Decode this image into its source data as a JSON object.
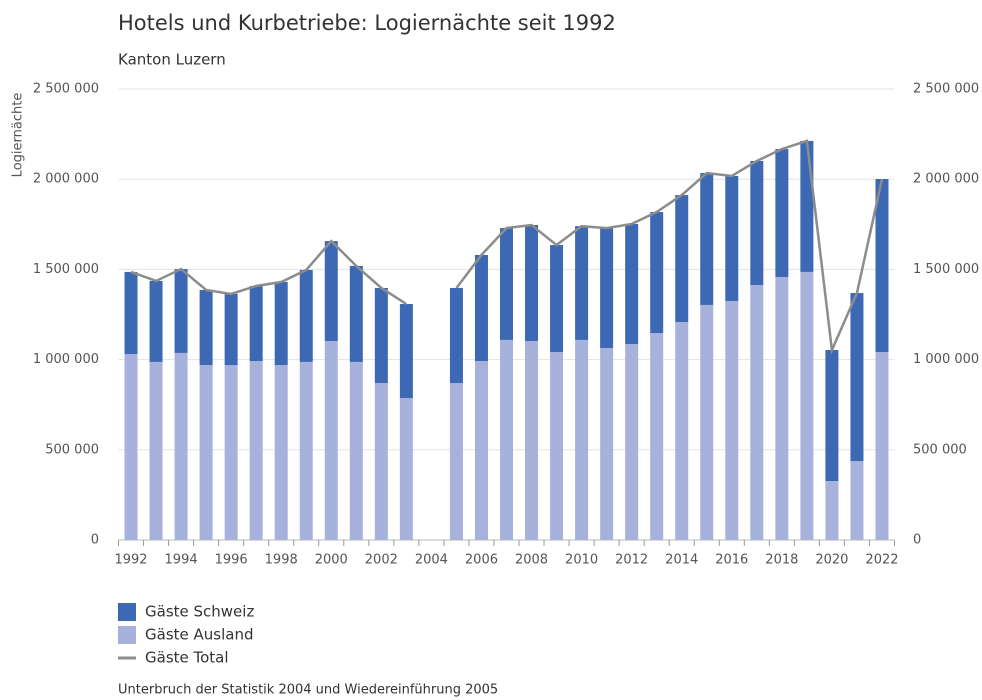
{
  "chart_data": {
    "type": "bar",
    "title": "Hotels und Kurbetriebe: Logiernächte seit 1992",
    "subtitle": "Kanton Luzern",
    "y_label": "Logiernächte",
    "note": "Unterbruch der Statistik 2004 und Wiedereinführung 2005",
    "categories": [
      "1992",
      null,
      "1994",
      null,
      "1996",
      null,
      "1998",
      null,
      "2000",
      null,
      "2002",
      null,
      "2004",
      null,
      "2006",
      null,
      "2008",
      null,
      "2010",
      null,
      "2012",
      null,
      "2014",
      null,
      "2016",
      null,
      "2018",
      null,
      "2020",
      null,
      "2022"
    ],
    "series": [
      {
        "name": "Gäste Schweiz",
        "type": "bar",
        "color": "#3c68b4",
        "values": [
          455000,
          449000,
          465000,
          416000,
          394000,
          416000,
          460000,
          510000,
          554000,
          532000,
          527000,
          521000,
          null,
          527000,
          588000,
          620000,
          643000,
          593000,
          631000,
          665000,
          666000,
          671000,
          704000,
          731000,
          693000,
          688000,
          709000,
          726000,
          726000,
          931000,
          959000
        ]
      },
      {
        "name": "Gäste Ausland",
        "type": "bar",
        "color": "#a6b2dc",
        "values": [
          1031000,
          987000,
          1037000,
          970000,
          970000,
          992000,
          970000,
          987000,
          1103000,
          987000,
          870000,
          787000,
          null,
          870000,
          992000,
          1109000,
          1103000,
          1042000,
          1109000,
          1064000,
          1086000,
          1147000,
          1208000,
          1303000,
          1325000,
          1413000,
          1458000,
          1486000,
          327000,
          438000,
          1042000
        ]
      },
      {
        "name": "Gäste Total",
        "type": "line",
        "color": "#8c8c8c",
        "values": [
          1486000,
          1436000,
          1502000,
          1386000,
          1364000,
          1408000,
          1430000,
          1497000,
          1657000,
          1519000,
          1397000,
          1308000,
          null,
          1397000,
          1580000,
          1729000,
          1746000,
          1635000,
          1740000,
          1729000,
          1752000,
          1818000,
          1912000,
          2034000,
          2018000,
          2101000,
          2167000,
          2212000,
          1053000,
          1369000,
          2001000
        ]
      }
    ],
    "ylim": [
      0,
      2500000
    ],
    "yticks": [
      0,
      {
        "value": 500000,
        "label": "500 000"
      },
      {
        "value": 1000000,
        "label": "1 000 000"
      },
      {
        "value": 1500000,
        "label": "1 500 000"
      },
      {
        "value": 2000000,
        "label": "2 000 000"
      },
      {
        "value": 2500000,
        "label": "2 500 000"
      }
    ],
    "grid": true
  }
}
